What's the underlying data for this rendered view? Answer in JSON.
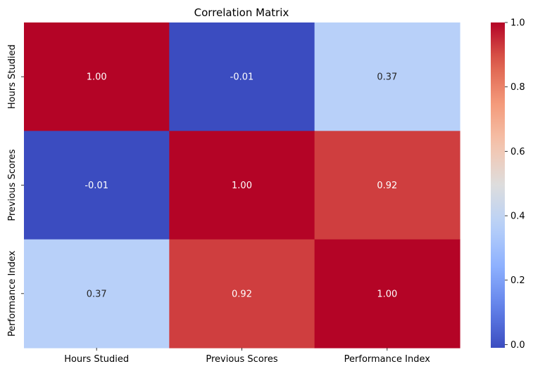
{
  "chart_data": {
    "type": "heatmap",
    "title": "Correlation Matrix",
    "x_categories": [
      "Hours Studied",
      "Previous Scores",
      "Performance Index"
    ],
    "y_categories": [
      "Hours Studied",
      "Previous Scores",
      "Performance Index"
    ],
    "values": [
      [
        1.0,
        -0.01,
        0.37
      ],
      [
        -0.01,
        1.0,
        0.92
      ],
      [
        0.37,
        0.92,
        1.0
      ]
    ],
    "annotations": [
      [
        "1.00",
        "-0.01",
        "0.37"
      ],
      [
        "-0.01",
        "1.00",
        "0.92"
      ],
      [
        "0.37",
        "0.92",
        "1.00"
      ]
    ],
    "colormap": "coolwarm",
    "vmin": -0.01,
    "vmax": 1.0,
    "colorbar_ticks": [
      0.0,
      0.2,
      0.4,
      0.6,
      0.8,
      1.0
    ],
    "colorbar_tick_labels": [
      "0.0",
      "0.2",
      "0.4",
      "0.6",
      "0.8",
      "1.0"
    ],
    "annotation_colors": {
      "dark": "#262626",
      "light": "#ffffff"
    }
  }
}
